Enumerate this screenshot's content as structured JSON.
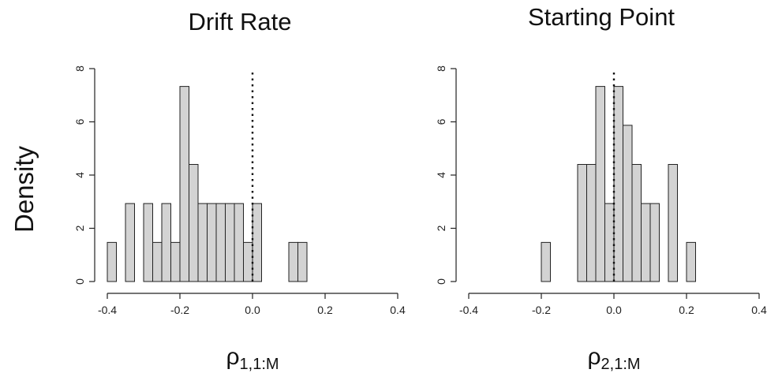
{
  "ylabel": "Density",
  "chart_data": [
    {
      "type": "bar",
      "title": "Drift Rate",
      "xlabel": "ρ",
      "xlabel_sub": "1,1:M",
      "ylabel": "Density",
      "xlim": [
        -0.4,
        0.4
      ],
      "ylim": [
        0,
        8
      ],
      "xticks": [
        -0.4,
        -0.2,
        0.0,
        0.2,
        0.4
      ],
      "xtick_labels": [
        "-0.4",
        "-0.2",
        "0.0",
        "0.2",
        "0.4"
      ],
      "yticks": [
        0,
        2,
        4,
        6,
        8
      ],
      "ytick_labels": [
        "0",
        "2",
        "4",
        "6",
        "8"
      ],
      "bin_width": 0.025,
      "reference_line_x": 0.0,
      "bins": [
        {
          "x0": -0.4,
          "x1": -0.375,
          "density": 1.47
        },
        {
          "x0": -0.375,
          "x1": -0.35,
          "density": 0
        },
        {
          "x0": -0.35,
          "x1": -0.325,
          "density": 2.93
        },
        {
          "x0": -0.325,
          "x1": -0.3,
          "density": 0
        },
        {
          "x0": -0.3,
          "x1": -0.275,
          "density": 2.93
        },
        {
          "x0": -0.275,
          "x1": -0.25,
          "density": 1.47
        },
        {
          "x0": -0.25,
          "x1": -0.225,
          "density": 2.93
        },
        {
          "x0": -0.225,
          "x1": -0.2,
          "density": 1.47
        },
        {
          "x0": -0.2,
          "x1": -0.175,
          "density": 7.33
        },
        {
          "x0": -0.175,
          "x1": -0.15,
          "density": 4.4
        },
        {
          "x0": -0.15,
          "x1": -0.125,
          "density": 2.93
        },
        {
          "x0": -0.125,
          "x1": -0.1,
          "density": 2.93
        },
        {
          "x0": -0.1,
          "x1": -0.075,
          "density": 2.93
        },
        {
          "x0": -0.075,
          "x1": -0.05,
          "density": 2.93
        },
        {
          "x0": -0.05,
          "x1": -0.025,
          "density": 2.93
        },
        {
          "x0": -0.025,
          "x1": 0.0,
          "density": 1.47
        },
        {
          "x0": 0.0,
          "x1": 0.025,
          "density": 2.93
        },
        {
          "x0": 0.025,
          "x1": 0.05,
          "density": 0
        },
        {
          "x0": 0.05,
          "x1": 0.075,
          "density": 0
        },
        {
          "x0": 0.075,
          "x1": 0.1,
          "density": 0
        },
        {
          "x0": 0.1,
          "x1": 0.125,
          "density": 1.47
        },
        {
          "x0": 0.125,
          "x1": 0.15,
          "density": 1.47
        }
      ]
    },
    {
      "type": "bar",
      "title": "Starting Point",
      "xlabel": "ρ",
      "xlabel_sub": "2,1:M",
      "ylabel": "Density",
      "xlim": [
        -0.4,
        0.4
      ],
      "ylim": [
        0,
        8
      ],
      "xticks": [
        -0.4,
        -0.2,
        0.0,
        0.2,
        0.4
      ],
      "xtick_labels": [
        "-0.4",
        "-0.2",
        "0.0",
        "0.2",
        "0.4"
      ],
      "yticks": [
        0,
        2,
        4,
        6,
        8
      ],
      "ytick_labels": [
        "0",
        "2",
        "4",
        "6",
        "8"
      ],
      "bin_width": 0.025,
      "reference_line_x": 0.0,
      "bins": [
        {
          "x0": -0.2,
          "x1": -0.175,
          "density": 1.47
        },
        {
          "x0": -0.175,
          "x1": -0.15,
          "density": 0
        },
        {
          "x0": -0.15,
          "x1": -0.125,
          "density": 0
        },
        {
          "x0": -0.125,
          "x1": -0.1,
          "density": 0
        },
        {
          "x0": -0.1,
          "x1": -0.075,
          "density": 4.4
        },
        {
          "x0": -0.075,
          "x1": -0.05,
          "density": 4.4
        },
        {
          "x0": -0.05,
          "x1": -0.025,
          "density": 7.33
        },
        {
          "x0": -0.025,
          "x1": 0.0,
          "density": 2.93
        },
        {
          "x0": 0.0,
          "x1": 0.025,
          "density": 7.33
        },
        {
          "x0": 0.025,
          "x1": 0.05,
          "density": 5.87
        },
        {
          "x0": 0.05,
          "x1": 0.075,
          "density": 4.4
        },
        {
          "x0": 0.075,
          "x1": 0.1,
          "density": 2.93
        },
        {
          "x0": 0.1,
          "x1": 0.125,
          "density": 2.93
        },
        {
          "x0": 0.125,
          "x1": 0.15,
          "density": 0
        },
        {
          "x0": 0.15,
          "x1": 0.175,
          "density": 4.4
        },
        {
          "x0": 0.175,
          "x1": 0.2,
          "density": 0
        },
        {
          "x0": 0.2,
          "x1": 0.225,
          "density": 1.47
        }
      ]
    }
  ]
}
